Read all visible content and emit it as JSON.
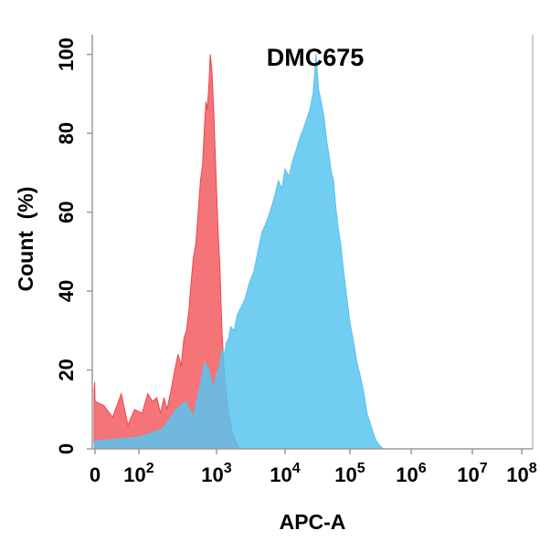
{
  "chart_data": {
    "type": "area",
    "title": "DMC675",
    "xlabel": "APC-A",
    "ylabel": "Count  (%)",
    "x_scale": "biexponential",
    "yticks": [
      {
        "value": 0,
        "label": "0"
      },
      {
        "value": 20,
        "label": "20"
      },
      {
        "value": 40,
        "label": "40"
      },
      {
        "value": 60,
        "label": "60"
      },
      {
        "value": 80,
        "label": "80"
      },
      {
        "value": 100,
        "label": "100"
      }
    ],
    "xticks": [
      {
        "value": 0,
        "base": "0",
        "exp": ""
      },
      {
        "value": 100,
        "base": "10",
        "exp": "2"
      },
      {
        "value": 1000,
        "base": "10",
        "exp": "3"
      },
      {
        "value": 10000,
        "base": "10",
        "exp": "4"
      },
      {
        "value": 100000,
        "base": "10",
        "exp": "5"
      },
      {
        "value": 1000000,
        "base": "10",
        "exp": "6"
      },
      {
        "value": 10000000,
        "base": "10",
        "exp": "7"
      },
      {
        "value": 100000000,
        "base": "10",
        "exp": "8"
      }
    ],
    "ylim": [
      0,
      105
    ],
    "grid": false,
    "legend": "none",
    "series": [
      {
        "color": "#f0464b",
        "opacity": 0.75,
        "points": [
          [
            -50,
            15
          ],
          [
            -20,
            17
          ],
          [
            0,
            12
          ],
          [
            20,
            11
          ],
          [
            40,
            8
          ],
          [
            60,
            14
          ],
          [
            75,
            6
          ],
          [
            90,
            10
          ],
          [
            110,
            9
          ],
          [
            130,
            14
          ],
          [
            150,
            12
          ],
          [
            170,
            13
          ],
          [
            190,
            9
          ],
          [
            210,
            13
          ],
          [
            230,
            10
          ],
          [
            260,
            15
          ],
          [
            290,
            20
          ],
          [
            320,
            24
          ],
          [
            350,
            21
          ],
          [
            380,
            28
          ],
          [
            410,
            30
          ],
          [
            440,
            35
          ],
          [
            470,
            42
          ],
          [
            500,
            48
          ],
          [
            540,
            52
          ],
          [
            580,
            60
          ],
          [
            620,
            68
          ],
          [
            660,
            72
          ],
          [
            700,
            82
          ],
          [
            730,
            88
          ],
          [
            760,
            86
          ],
          [
            800,
            93
          ],
          [
            830,
            100
          ],
          [
            870,
            96
          ],
          [
            920,
            86
          ],
          [
            980,
            70
          ],
          [
            1050,
            56
          ],
          [
            1120,
            46
          ],
          [
            1200,
            30
          ],
          [
            1300,
            19
          ],
          [
            1400,
            13
          ],
          [
            1500,
            9
          ],
          [
            1650,
            5
          ],
          [
            1800,
            3
          ],
          [
            2000,
            1
          ],
          [
            2200,
            0
          ]
        ]
      },
      {
        "color": "#58c4ee",
        "opacity": 0.85,
        "points": [
          [
            -50,
            1
          ],
          [
            0,
            2
          ],
          [
            100,
            3
          ],
          [
            200,
            5
          ],
          [
            300,
            10
          ],
          [
            400,
            12
          ],
          [
            500,
            8
          ],
          [
            600,
            15
          ],
          [
            700,
            22
          ],
          [
            800,
            20
          ],
          [
            900,
            15
          ],
          [
            1000,
            19
          ],
          [
            1100,
            21
          ],
          [
            1200,
            25
          ],
          [
            1300,
            24
          ],
          [
            1400,
            27
          ],
          [
            1500,
            28
          ],
          [
            1600,
            31
          ],
          [
            1800,
            30
          ],
          [
            2000,
            34
          ],
          [
            2300,
            36
          ],
          [
            2600,
            38
          ],
          [
            3000,
            42
          ],
          [
            3500,
            45
          ],
          [
            4000,
            50
          ],
          [
            4600,
            55
          ],
          [
            5200,
            57
          ],
          [
            6000,
            60
          ],
          [
            7000,
            64
          ],
          [
            8000,
            68
          ],
          [
            9000,
            66
          ],
          [
            10000,
            71
          ],
          [
            11500,
            69
          ],
          [
            13000,
            73
          ],
          [
            15000,
            76
          ],
          [
            17000,
            79
          ],
          [
            19000,
            81
          ],
          [
            21000,
            83
          ],
          [
            24000,
            86
          ],
          [
            27000,
            90
          ],
          [
            30000,
            100
          ],
          [
            33000,
            91
          ],
          [
            36000,
            88
          ],
          [
            40000,
            84
          ],
          [
            44000,
            78
          ],
          [
            48000,
            74
          ],
          [
            52000,
            70
          ],
          [
            56000,
            68
          ],
          [
            60000,
            62
          ],
          [
            66000,
            56
          ],
          [
            72000,
            52
          ],
          [
            80000,
            45
          ],
          [
            90000,
            38
          ],
          [
            100000,
            32
          ],
          [
            115000,
            27
          ],
          [
            130000,
            22
          ],
          [
            150000,
            18
          ],
          [
            170000,
            14
          ],
          [
            190000,
            9
          ],
          [
            210000,
            7
          ],
          [
            240000,
            4
          ],
          [
            270000,
            2
          ],
          [
            300000,
            1
          ],
          [
            350000,
            0
          ]
        ]
      }
    ]
  }
}
